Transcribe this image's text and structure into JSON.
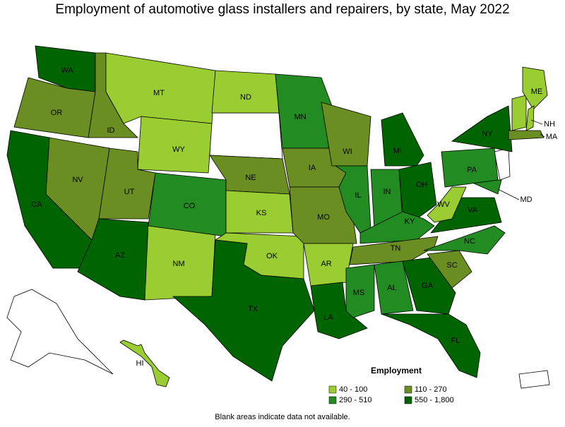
{
  "title": "Employment of automotive glass installers and repairers, by state, May 2022",
  "legend": {
    "title": "Employment",
    "items": [
      {
        "label": "40 - 100",
        "color": "#9acd32"
      },
      {
        "label": "110 - 270",
        "color": "#6b8e23"
      },
      {
        "label": "290 - 510",
        "color": "#228b22"
      },
      {
        "label": "550 - 1,800",
        "color": "#006400"
      }
    ]
  },
  "note": "Blank areas indicate data not available.",
  "states": [
    {
      "label": "WA",
      "class": 3
    },
    {
      "label": "OR",
      "class": 1
    },
    {
      "label": "CA",
      "class": 3
    },
    {
      "label": "NV",
      "class": 1
    },
    {
      "label": "ID",
      "class": 1
    },
    {
      "label": "MT",
      "class": 0
    },
    {
      "label": "WY",
      "class": 0
    },
    {
      "label": "UT",
      "class": 1
    },
    {
      "label": "AZ",
      "class": 3
    },
    {
      "label": "NM",
      "class": 0
    },
    {
      "label": "CO",
      "class": 2
    },
    {
      "label": "ND",
      "class": 0
    },
    {
      "label": "NE",
      "class": 1
    },
    {
      "label": "KS",
      "class": 0
    },
    {
      "label": "OK",
      "class": 0
    },
    {
      "label": "TX",
      "class": 3
    },
    {
      "label": "MN",
      "class": 2
    },
    {
      "label": "IA",
      "class": 1
    },
    {
      "label": "MO",
      "class": 1
    },
    {
      "label": "AR",
      "class": 0
    },
    {
      "label": "LA",
      "class": 3
    },
    {
      "label": "WI",
      "class": 1
    },
    {
      "label": "IL",
      "class": 2
    },
    {
      "label": "MI",
      "class": 3
    },
    {
      "label": "IN",
      "class": 2
    },
    {
      "label": "OH",
      "class": 3
    },
    {
      "label": "KY",
      "class": 2
    },
    {
      "label": "TN",
      "class": 1
    },
    {
      "label": "MS",
      "class": 2
    },
    {
      "label": "AL",
      "class": 2
    },
    {
      "label": "GA",
      "class": 3
    },
    {
      "label": "FL",
      "class": 3
    },
    {
      "label": "SC",
      "class": 1
    },
    {
      "label": "NC",
      "class": 2
    },
    {
      "label": "VA",
      "class": 3
    },
    {
      "label": "WV",
      "class": 0
    },
    {
      "label": "MD",
      "class": 2
    },
    {
      "label": "PA",
      "class": 2
    },
    {
      "label": "NY",
      "class": 3
    },
    {
      "label": "ME",
      "class": 0
    },
    {
      "label": "NH",
      "class": 0
    },
    {
      "label": "MA",
      "class": 1
    },
    {
      "label": "HI",
      "class": 0
    }
  ]
}
